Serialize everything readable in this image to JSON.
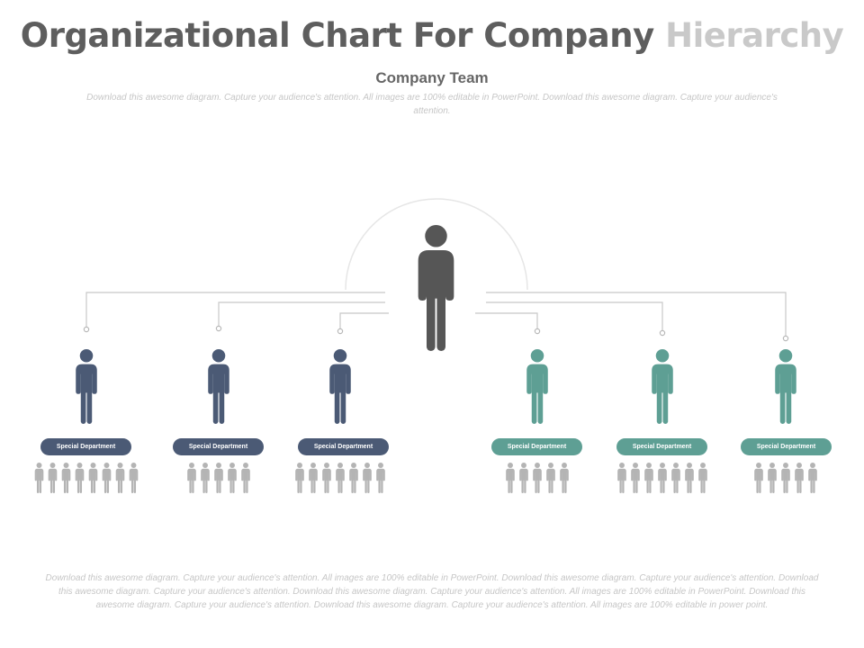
{
  "title": {
    "main": "Organizational Chart For Company",
    "highlight": "Hierarchy"
  },
  "subtitle": "Company Team",
  "description_top": "Download this awesome diagram. Capture your audience's attention. All images are 100% editable in PowerPoint. Download this awesome diagram. Capture your audience's attention.",
  "description_bottom": "Download this awesome diagram. Capture your audience's attention. All images are 100% editable in PowerPoint. Download this awesome diagram. Capture your audience's attention. Download this awesome diagram. Capture your audience's attention. Download this awesome diagram. Capture your audience's attention. All images are 100% editable in PowerPoint. Download this awesome diagram. Capture your audience's attention. Download this awesome diagram. Capture your audience's attention. All images are 100% editable in power point.",
  "colors": {
    "leader": "#565656",
    "blue": "#4b5a75",
    "teal": "#5e9f94",
    "team": "#b4b4b4",
    "connector": "#c8c8c8"
  },
  "departments": [
    {
      "label": "Special Department",
      "color": "blue",
      "team_size": 8
    },
    {
      "label": "Special Department",
      "color": "blue",
      "team_size": 5
    },
    {
      "label": "Special Department",
      "color": "blue",
      "team_size": 7
    },
    {
      "label": "Special Department",
      "color": "teal",
      "team_size": 5
    },
    {
      "label": "Special Department",
      "color": "teal",
      "team_size": 7
    },
    {
      "label": "Special Department",
      "color": "teal",
      "team_size": 5
    }
  ]
}
